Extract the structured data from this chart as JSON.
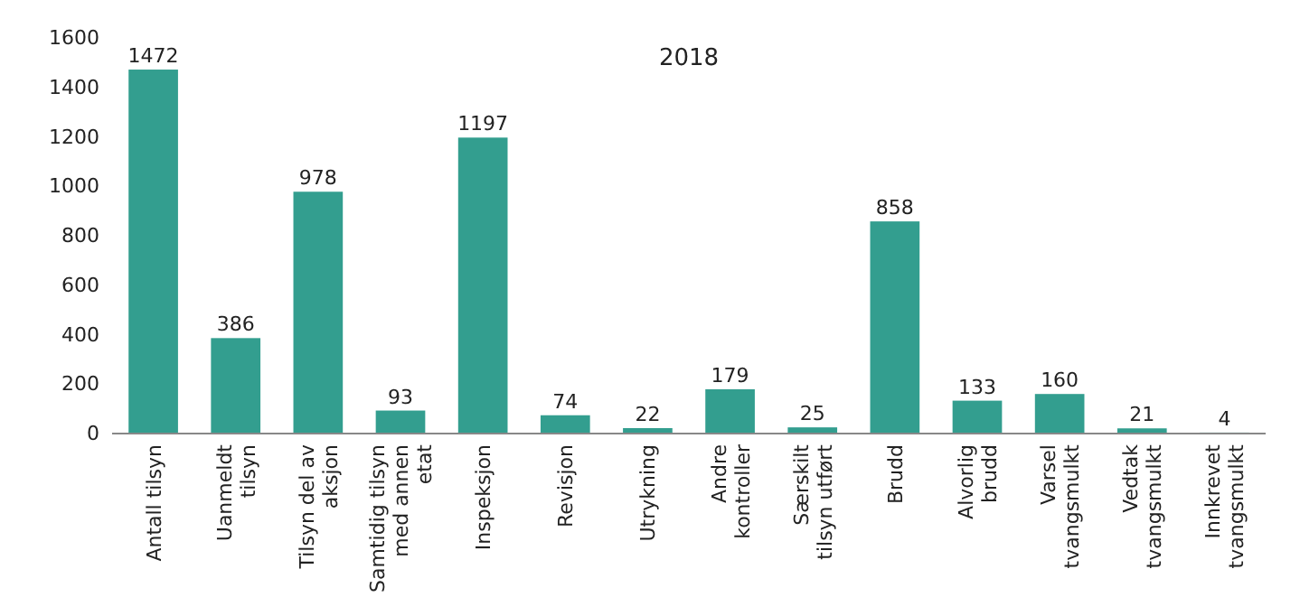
{
  "chart_data": {
    "type": "bar",
    "title": "2018",
    "categories": [
      "Antall tilsyn",
      "Uanmeldt\ntilsyn",
      "Tilsyn del av\naksjon",
      "Samtidig tilsyn\nmed annen\netat",
      "Inspeksjon",
      "Revisjon",
      "Utrykning",
      "Andre\nkontroller",
      "Særskilt\ntilsyn utført",
      "Brudd",
      "Alvorlig\nbrudd",
      "Varsel\ntvangsmulkt",
      "Vedtak\ntvangsmulkt",
      "Innkrevet\ntvangsmulkt"
    ],
    "values": [
      1472,
      386,
      978,
      93,
      1197,
      74,
      22,
      179,
      25,
      858,
      133,
      160,
      21,
      4
    ],
    "color": "#339e8f",
    "ylim": [
      0,
      1600
    ],
    "yticks": [
      0,
      200,
      400,
      600,
      800,
      1000,
      1200,
      1400,
      1600
    ],
    "data_labels": true,
    "grid": false
  }
}
